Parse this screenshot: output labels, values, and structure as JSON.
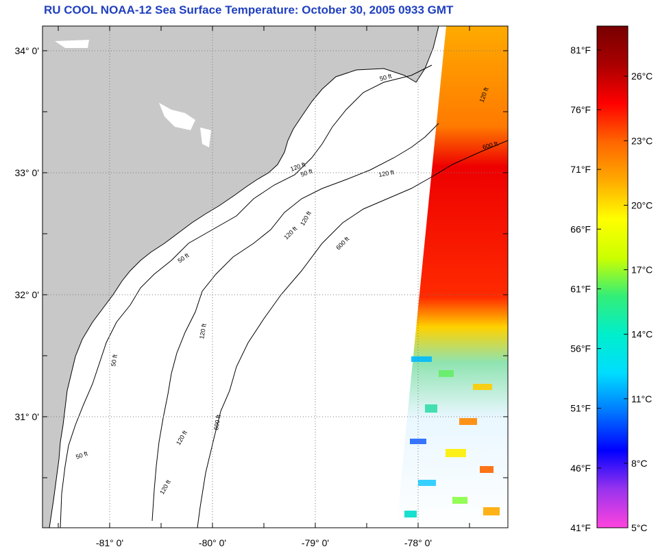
{
  "title": "RU COOL  NOAA-12  Sea Surface Temperature:  October 30, 2005 0933 GMT",
  "map": {
    "lat_ticks": [
      {
        "value": 34,
        "label": "34° 0'"
      },
      {
        "value": 33,
        "label": "33° 0'"
      },
      {
        "value": 32,
        "label": "32° 0'"
      },
      {
        "value": 31,
        "label": "31° 0'"
      }
    ],
    "lon_ticks": [
      {
        "value": -81,
        "label": "-81° 0'"
      },
      {
        "value": -80,
        "label": "-80° 0'"
      },
      {
        "value": -79,
        "label": "-79° 0'"
      },
      {
        "value": -78,
        "label": "-78° 0'"
      }
    ],
    "contour_labels": [
      "50 ft",
      "50 ft",
      "120 ft",
      "120 ft",
      "600 ft",
      "50 ft",
      "120 ft",
      "600 ft",
      "120 ft",
      "50 ft",
      "120 ft",
      "600 ft",
      "120 ft",
      "120 ft",
      "50 ft",
      "120 ft"
    ],
    "colors": {
      "land": "#c8c8c8",
      "ocean": "#ffffff",
      "frame": "#000000",
      "grid": "#7a7a7a"
    }
  },
  "colorbar": {
    "fahrenheit_labels": [
      "81°F",
      "76°F",
      "71°F",
      "66°F",
      "61°F",
      "56°F",
      "51°F",
      "46°F",
      "41°F"
    ],
    "celsius_labels": [
      "26°C",
      "23°C",
      "20°C",
      "17°C",
      "14°C",
      "11°C",
      "8°C",
      "5°C"
    ],
    "range_f": [
      41,
      83
    ],
    "range_c": [
      5,
      28.3
    ],
    "color_stops": [
      "#ff44dd",
      "#9933ee",
      "#0000ff",
      "#0077ff",
      "#00ddff",
      "#00eecc",
      "#33ee77",
      "#ccff00",
      "#ffff00",
      "#ffaa00",
      "#ff6600",
      "#ff0000",
      "#aa0000",
      "#770000"
    ]
  }
}
